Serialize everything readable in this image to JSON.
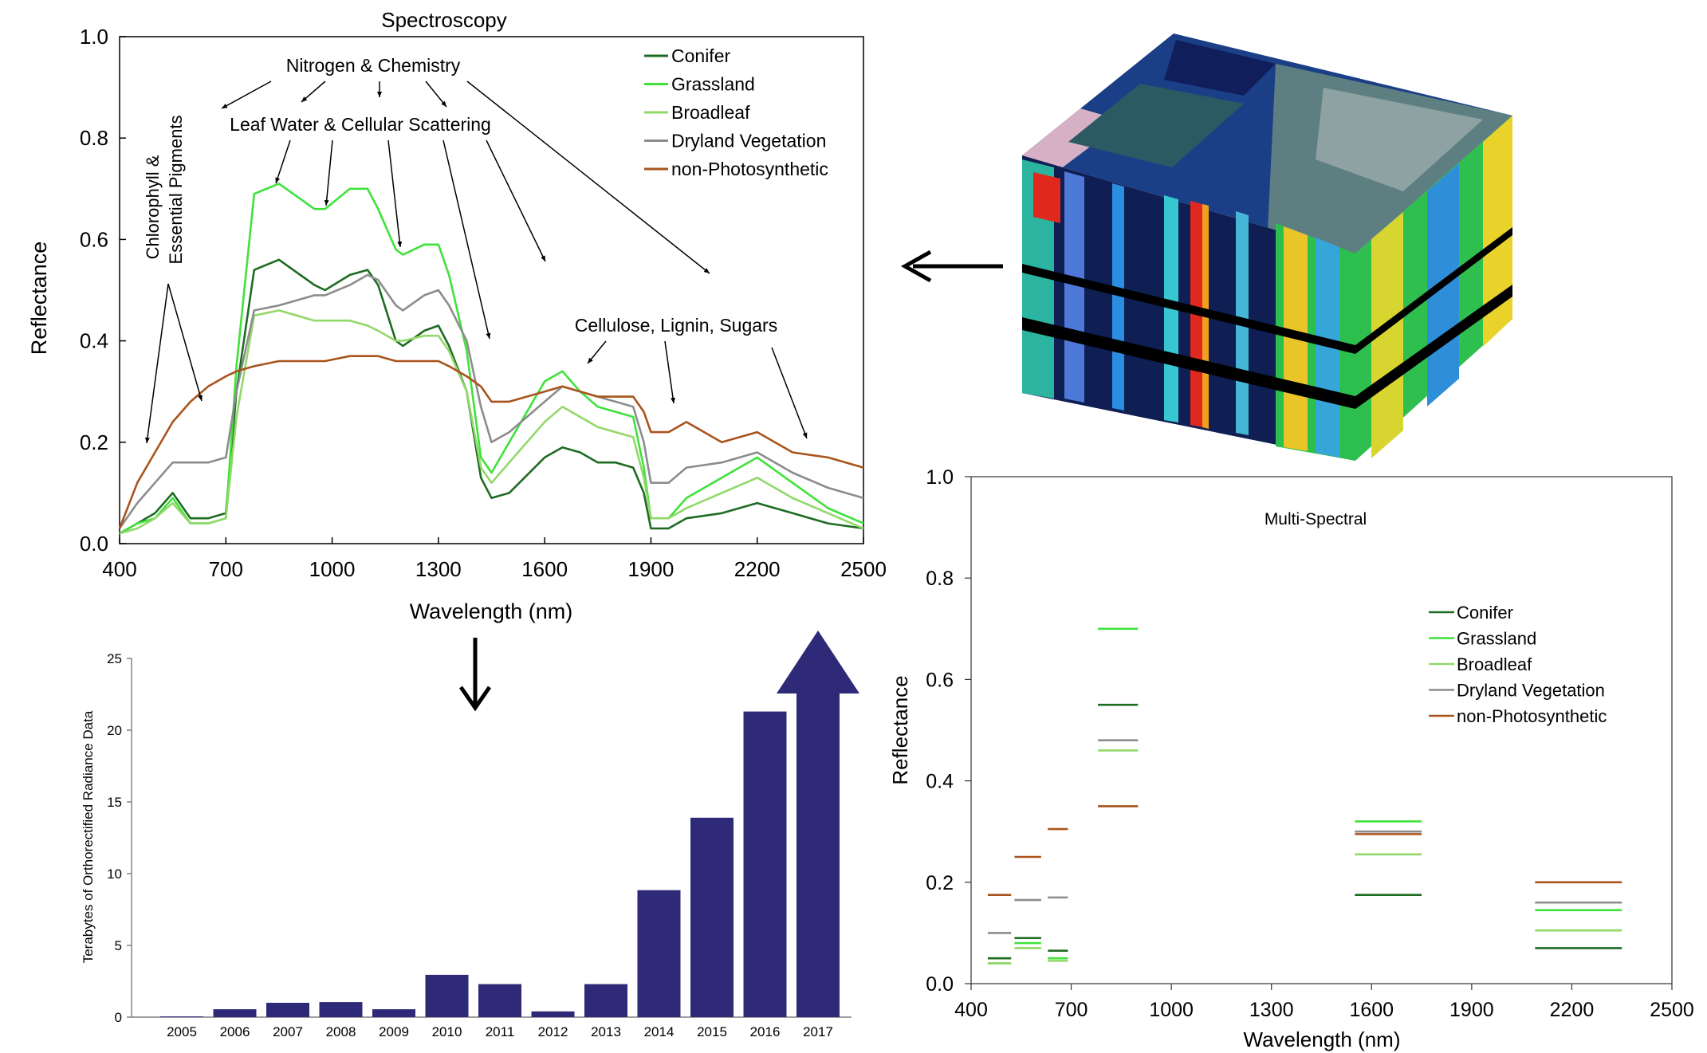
{
  "colors": {
    "Conifer": "#1e6b22",
    "Grassland": "#3fe23a",
    "Broadleaf": "#92d86a",
    "Dryland Vegetation": "#8c8c8c",
    "non-Photosynthetic": "#a9541c",
    "bars": "#2e2a78",
    "arrows": "#000000"
  },
  "chart_data": [
    {
      "type": "line",
      "title": "Spectroscopy",
      "xlabel": "Wavelength (nm)",
      "ylabel": "Reflectance",
      "xlim": [
        400,
        2500
      ],
      "ylim": [
        0,
        1
      ],
      "xticks": [
        "400",
        "700",
        "1000",
        "1300",
        "1600",
        "1900",
        "2200",
        "2500"
      ],
      "yticks": [
        "0.0",
        "0.2",
        "0.4",
        "0.6",
        "0.8",
        "1.0"
      ],
      "legend_position": "top-right",
      "x": [
        400,
        450,
        500,
        550,
        600,
        650,
        700,
        730,
        780,
        850,
        950,
        980,
        1050,
        1100,
        1130,
        1180,
        1200,
        1260,
        1300,
        1330,
        1380,
        1420,
        1450,
        1500,
        1600,
        1650,
        1700,
        1750,
        1800,
        1850,
        1880,
        1900,
        1950,
        2000,
        2100,
        2200,
        2300,
        2400,
        2500
      ],
      "series": [
        {
          "name": "Conifer",
          "values": [
            0.02,
            0.04,
            0.06,
            0.1,
            0.05,
            0.05,
            0.06,
            0.3,
            0.54,
            0.56,
            0.51,
            0.5,
            0.53,
            0.54,
            0.51,
            0.4,
            0.39,
            0.42,
            0.43,
            0.39,
            0.3,
            0.13,
            0.09,
            0.1,
            0.17,
            0.19,
            0.18,
            0.16,
            0.16,
            0.15,
            0.1,
            0.03,
            0.03,
            0.05,
            0.06,
            0.08,
            0.06,
            0.04,
            0.03
          ]
        },
        {
          "name": "Grassland",
          "values": [
            0.02,
            0.04,
            0.05,
            0.09,
            0.04,
            0.04,
            0.05,
            0.35,
            0.69,
            0.71,
            0.66,
            0.66,
            0.7,
            0.7,
            0.66,
            0.58,
            0.57,
            0.59,
            0.59,
            0.53,
            0.38,
            0.17,
            0.14,
            0.2,
            0.32,
            0.34,
            0.3,
            0.27,
            0.26,
            0.25,
            0.15,
            0.05,
            0.05,
            0.09,
            0.13,
            0.17,
            0.12,
            0.07,
            0.04
          ]
        },
        {
          "name": "Broadleaf",
          "values": [
            0.02,
            0.03,
            0.05,
            0.08,
            0.04,
            0.04,
            0.05,
            0.25,
            0.45,
            0.46,
            0.44,
            0.44,
            0.44,
            0.43,
            0.42,
            0.4,
            0.4,
            0.41,
            0.41,
            0.38,
            0.3,
            0.15,
            0.12,
            0.16,
            0.24,
            0.27,
            0.25,
            0.23,
            0.22,
            0.21,
            0.13,
            0.05,
            0.05,
            0.07,
            0.1,
            0.13,
            0.09,
            0.06,
            0.03
          ]
        },
        {
          "name": "Dryland Vegetation",
          "values": [
            0.03,
            0.08,
            0.12,
            0.16,
            0.16,
            0.16,
            0.17,
            0.3,
            0.46,
            0.47,
            0.49,
            0.49,
            0.51,
            0.53,
            0.52,
            0.47,
            0.46,
            0.49,
            0.5,
            0.47,
            0.4,
            0.27,
            0.2,
            0.22,
            0.28,
            0.31,
            0.3,
            0.29,
            0.28,
            0.27,
            0.2,
            0.12,
            0.12,
            0.15,
            0.16,
            0.18,
            0.14,
            0.11,
            0.09
          ]
        },
        {
          "name": "non-Photosynthetic",
          "values": [
            0.03,
            0.12,
            0.18,
            0.24,
            0.28,
            0.31,
            0.33,
            0.34,
            0.35,
            0.36,
            0.36,
            0.36,
            0.37,
            0.37,
            0.37,
            0.36,
            0.36,
            0.36,
            0.36,
            0.35,
            0.33,
            0.31,
            0.28,
            0.28,
            0.3,
            0.31,
            0.3,
            0.29,
            0.29,
            0.29,
            0.26,
            0.22,
            0.22,
            0.24,
            0.2,
            0.22,
            0.18,
            0.17,
            0.15
          ]
        }
      ],
      "annotations": [
        "Nitrogen & Chemistry",
        "Leaf Water & Cellular Scattering",
        "Chlorophyll &",
        "Essential Pigments",
        "Cellulose, Lignin, Sugars"
      ]
    },
    {
      "type": "line",
      "title": "Multi-Spectral",
      "xlabel": "Wavelength (nm)",
      "ylabel": "Reflectance",
      "xlim": [
        400,
        2500
      ],
      "ylim": [
        0,
        1
      ],
      "xticks": [
        "400",
        "700",
        "1000",
        "1300",
        "1600",
        "1900",
        "2200",
        "2500"
      ],
      "yticks": [
        "0.0",
        "0.2",
        "0.4",
        "0.6",
        "0.8",
        "1.0"
      ],
      "legend_position": "right",
      "bands": [
        [
          450,
          520
        ],
        [
          530,
          610
        ],
        [
          630,
          690
        ],
        [
          780,
          900
        ],
        [
          1550,
          1750
        ],
        [
          2090,
          2350
        ]
      ],
      "series": [
        {
          "name": "Conifer",
          "values": [
            0.05,
            0.09,
            0.065,
            0.55,
            0.175,
            0.07
          ]
        },
        {
          "name": "Grassland",
          "values": [
            0.04,
            0.08,
            0.05,
            0.7,
            0.32,
            0.145
          ]
        },
        {
          "name": "Broadleaf",
          "values": [
            0.04,
            0.07,
            0.045,
            0.46,
            0.255,
            0.105
          ]
        },
        {
          "name": "Dryland Vegetation",
          "values": [
            0.1,
            0.165,
            0.17,
            0.48,
            0.3,
            0.16
          ]
        },
        {
          "name": "non-Photosynthetic",
          "values": [
            0.175,
            0.25,
            0.305,
            0.35,
            0.295,
            0.2
          ]
        }
      ]
    },
    {
      "type": "bar",
      "ylabel": "Terabytes of Orthorectified Radiance Data",
      "ylim": [
        0,
        25
      ],
      "yticks": [
        "0",
        "5",
        "10",
        "15",
        "20",
        "25"
      ],
      "categories": [
        "2005",
        "2006",
        "2007",
        "2008",
        "2009",
        "2010",
        "2011",
        "2012",
        "2013",
        "2014",
        "2015",
        "2016",
        "2017"
      ],
      "values": [
        0.05,
        0.55,
        1.0,
        1.05,
        0.55,
        2.95,
        2.3,
        0.4,
        2.3,
        8.85,
        13.9,
        21.3,
        25
      ]
    }
  ]
}
